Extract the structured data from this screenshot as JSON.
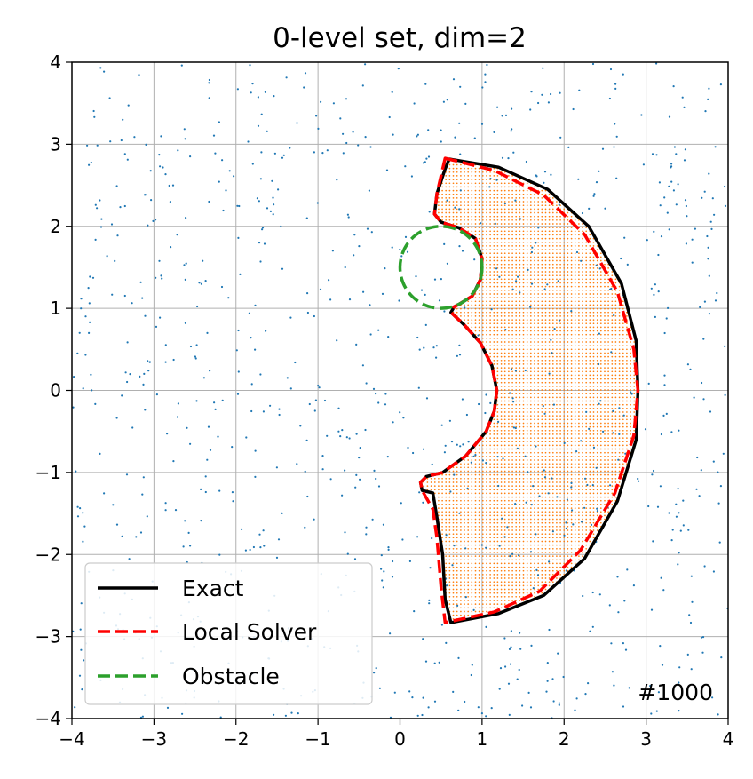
{
  "chart_data": {
    "type": "line",
    "title": "0-level set, dim=2",
    "xlabel": "",
    "ylabel": "",
    "xlim": [
      -4,
      4
    ],
    "ylim": [
      -4,
      4
    ],
    "xticks": [
      "−4",
      "−3",
      "−2",
      "−1",
      "0",
      "1",
      "2",
      "3",
      "4"
    ],
    "yticks": [
      "4",
      "3",
      "2",
      "1",
      "0",
      "−1",
      "−2",
      "−3",
      "−4"
    ],
    "grid": true,
    "legend_position": "lower-left",
    "annotation": "#1000",
    "colors": {
      "exact": "#000000",
      "local_solver": "#ff0000",
      "obstacle": "#2ca02c",
      "sample_points": "#1f77b4",
      "feasible_points": "#ff7f0e",
      "grid": "#b0b0b0"
    },
    "series": [
      {
        "name": "Exact",
        "style": "solid",
        "x": [
          0.6,
          1.2,
          1.8,
          2.3,
          2.7,
          2.88,
          2.9,
          2.88,
          2.65,
          2.25,
          1.75,
          1.2,
          0.62,
          0.55,
          0.52,
          0.45,
          0.4,
          0.27,
          0.25,
          0.32,
          0.52,
          0.8,
          1.05,
          1.15,
          1.18,
          1.12,
          0.98,
          0.78,
          0.62,
          0.66,
          0.72,
          0.88,
          0.98,
          1.0,
          0.92,
          0.72,
          0.5,
          0.42,
          0.45,
          0.55,
          0.6
        ],
        "y": [
          2.82,
          2.72,
          2.45,
          2.0,
          1.3,
          0.6,
          0.0,
          -0.6,
          -1.35,
          -2.05,
          -2.5,
          -2.72,
          -2.83,
          -2.55,
          -2.0,
          -1.55,
          -1.25,
          -1.22,
          -1.12,
          -1.05,
          -1.0,
          -0.8,
          -0.5,
          -0.25,
          0.0,
          0.3,
          0.58,
          0.8,
          0.95,
          1.02,
          1.05,
          1.15,
          1.35,
          1.6,
          1.85,
          1.98,
          2.05,
          2.15,
          2.4,
          2.7,
          2.82
        ]
      },
      {
        "name": "Local Solver",
        "style": "dashed",
        "x": [
          0.55,
          1.15,
          1.75,
          2.25,
          2.65,
          2.85,
          2.9,
          2.85,
          2.62,
          2.2,
          1.7,
          1.15,
          0.55,
          0.5,
          0.45,
          0.4,
          0.27,
          0.25,
          0.32,
          0.52,
          0.8,
          1.05,
          1.15,
          1.18,
          1.12,
          0.98,
          0.78,
          0.62,
          0.66,
          0.72,
          0.88,
          0.98,
          1.0,
          0.92,
          0.72,
          0.5,
          0.42,
          0.45,
          0.52,
          0.55
        ],
        "y": [
          2.83,
          2.68,
          2.38,
          1.9,
          1.2,
          0.5,
          0.0,
          -0.55,
          -1.25,
          -1.95,
          -2.45,
          -2.7,
          -2.83,
          -2.4,
          -1.8,
          -1.45,
          -1.22,
          -1.12,
          -1.05,
          -1.0,
          -0.8,
          -0.5,
          -0.25,
          0.0,
          0.3,
          0.58,
          0.8,
          0.95,
          1.02,
          1.05,
          1.15,
          1.35,
          1.6,
          1.85,
          1.98,
          2.05,
          2.15,
          2.4,
          2.7,
          2.83
        ]
      },
      {
        "name": "Obstacle",
        "style": "dashed",
        "shape": "circle",
        "center": [
          0.5,
          1.5
        ],
        "radius": 0.5
      }
    ]
  }
}
